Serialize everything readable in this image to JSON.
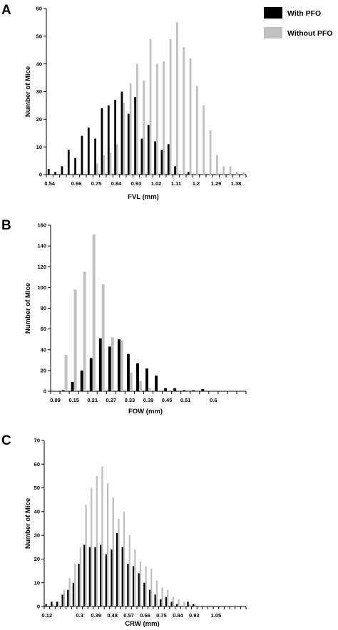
{
  "legend": [
    {
      "label": "With PFO",
      "color": "#000000"
    },
    {
      "label": "Without PFO",
      "color": "#c0c0c0"
    }
  ],
  "colors": {
    "with_pfo": "#000000",
    "without_pfo": "#c0c0c0"
  },
  "chart_data": [
    {
      "type": "bar",
      "panel": "A",
      "xlabel": "FVL (mm)",
      "ylabel": "Number of Mice",
      "ylim": [
        0,
        60
      ],
      "yticks": [
        0,
        10,
        20,
        30,
        40,
        50,
        60
      ],
      "xtick_labels": [
        "0.54",
        "0.66",
        "0.75",
        "0.84",
        "0.93",
        "1.02",
        "1.11",
        "1.2",
        "1.29",
        "1.38"
      ],
      "categories": [
        "0.54",
        "0.57",
        "0.60",
        "0.63",
        "0.66",
        "0.69",
        "0.72",
        "0.75",
        "0.78",
        "0.81",
        "0.84",
        "0.87",
        "0.90",
        "0.93",
        "0.96",
        "0.99",
        "1.02",
        "1.05",
        "1.08",
        "1.11",
        "1.14",
        "1.17",
        "1.20",
        "1.23",
        "1.26",
        "1.29",
        "1.32",
        "1.35",
        "1.38",
        "1.41"
      ],
      "series": [
        {
          "name": "With PFO",
          "values": [
            2,
            1,
            3,
            9,
            6,
            14,
            17,
            13,
            24,
            25,
            27,
            30,
            22,
            28,
            13,
            18,
            12,
            9,
            11,
            3,
            0,
            1,
            0,
            0,
            0,
            0,
            0,
            0,
            0,
            0
          ]
        },
        {
          "name": "Without PFO",
          "values": [
            0,
            0,
            0,
            0,
            0,
            0,
            0,
            4,
            7,
            8,
            11,
            26,
            33,
            40,
            34,
            49,
            40,
            41,
            49,
            55,
            46,
            42,
            32,
            25,
            16,
            7,
            3,
            3,
            1,
            1
          ]
        }
      ]
    },
    {
      "type": "bar",
      "panel": "B",
      "xlabel": "FOW (mm)",
      "ylabel": "Number of Mice",
      "ylim": [
        0,
        160
      ],
      "yticks": [
        0,
        20,
        40,
        60,
        80,
        100,
        120,
        140,
        160
      ],
      "xtick_labels": [
        "0.09",
        "0.15",
        "0.21",
        "0.27",
        "0.33",
        "0.39",
        "0.45",
        "0.51",
        "0.6"
      ],
      "categories": [
        "0.09",
        "0.12",
        "0.15",
        "0.18",
        "0.21",
        "0.24",
        "0.27",
        "0.30",
        "0.33",
        "0.36",
        "0.39",
        "0.42",
        "0.45",
        "0.48",
        "0.51",
        "0.54",
        "0.57",
        "0.60",
        "0.63",
        "0.66",
        "0.69"
      ],
      "series": [
        {
          "name": "With PFO",
          "values": [
            0,
            1,
            9,
            20,
            32,
            51,
            43,
            50,
            36,
            27,
            22,
            15,
            3,
            3,
            1,
            1,
            2,
            0,
            0,
            0,
            0
          ]
        },
        {
          "name": "Without PFO",
          "values": [
            1,
            35,
            98,
            115,
            151,
            103,
            52,
            49,
            18,
            10,
            3,
            1,
            1,
            0,
            0,
            0,
            0,
            0,
            0,
            0,
            0
          ]
        }
      ]
    },
    {
      "type": "bar",
      "panel": "C",
      "xlabel": "CRW (mm)",
      "ylabel": "Number of Mice",
      "ylim": [
        0,
        70
      ],
      "yticks": [
        0,
        10,
        20,
        30,
        40,
        50,
        60,
        70
      ],
      "xtick_labels": [
        "0.12",
        "0.3",
        "0.39",
        "0.48",
        "0.57",
        "0.66",
        "0.75",
        "0.84",
        "0.93",
        "1.05"
      ],
      "categories": [
        "0.12",
        "0.15",
        "0.18",
        "0.21",
        "0.24",
        "0.27",
        "0.30",
        "0.33",
        "0.36",
        "0.39",
        "0.42",
        "0.45",
        "0.48",
        "0.51",
        "0.54",
        "0.57",
        "0.60",
        "0.63",
        "0.66",
        "0.69",
        "0.72",
        "0.75",
        "0.78",
        "0.81",
        "0.84",
        "0.87",
        "0.90",
        "0.93",
        "0.96",
        "0.99",
        "1.02",
        "1.05",
        "1.08",
        "1.11",
        "1.14",
        "1.17",
        "1.20"
      ],
      "series": [
        {
          "name": "With PFO",
          "values": [
            1,
            2,
            2,
            5,
            7,
            10,
            18,
            26,
            25,
            25,
            26,
            22,
            24,
            31,
            25,
            18,
            17,
            14,
            10,
            7,
            5,
            3,
            4,
            2,
            1,
            0,
            2,
            1,
            0,
            0,
            0,
            0,
            0,
            0,
            0,
            0,
            0
          ]
        },
        {
          "name": "Without PFO",
          "values": [
            0,
            1,
            2,
            7,
            12,
            18,
            25,
            43,
            50,
            55,
            59,
            52,
            46,
            37,
            40,
            30,
            24,
            19,
            17,
            16,
            11,
            8,
            7,
            4,
            3,
            2,
            1,
            1,
            0,
            0,
            0,
            0,
            0,
            0,
            0,
            0,
            0
          ]
        }
      ]
    }
  ]
}
